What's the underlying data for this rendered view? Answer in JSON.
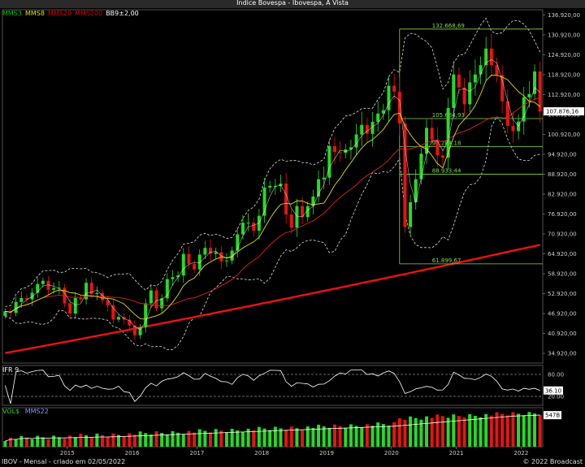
{
  "window": {
    "title": "Índice Bovespa - Ibovespa, À Vista"
  },
  "legend": [
    {
      "name": "MMS3",
      "color": "#00c000"
    },
    {
      "name": "MMS8",
      "color": "#e0e000"
    },
    {
      "name": "MMS20",
      "color": "#e00000"
    },
    {
      "name": "MMS200",
      "color": "#e00000"
    },
    {
      "name": "BB9±2,00",
      "color": "#ffffff"
    }
  ],
  "ifr_panel": {
    "label": "IFR 9",
    "ticks": [
      "80.00",
      "20.00"
    ],
    "last": "36.10"
  },
  "vol_panel": {
    "label1": "VOL$",
    "label2": "MMS22",
    "last": "547B"
  },
  "footer": {
    "left": "IBOV - Mensal - criado em 02/05/2022",
    "right": "© 2022 Broadcast"
  },
  "colors": {
    "up": "#22dd22",
    "down": "#ee1111",
    "ma200": "#ee1111",
    "fib": "#7fdc4a",
    "band": "#dddddd"
  },
  "chart_data": {
    "type": "candlestick",
    "x_ticks": [
      "2015",
      "2016",
      "2017",
      "2018",
      "2019",
      "2020",
      "2021",
      "2022"
    ],
    "y_ticks": [
      "136.920,00",
      "130.920,00",
      "124.920,00",
      "118.920,00",
      "112.920,00",
      "106.920,00",
      "100.920,00",
      "94.920,00",
      "88.920,00",
      "82.920,00",
      "76.920,00",
      "70.920,00",
      "64.920,00",
      "58.920,00",
      "52.920,00",
      "46.920,00",
      "40.920,00",
      "34.920,00"
    ],
    "ylim": [
      32000,
      138500
    ],
    "last_price": "107.876,16",
    "fib_levels": [
      {
        "value": 132668.69,
        "label": "132.668,69"
      },
      {
        "value": 105684.93,
        "label": "105.684,93"
      },
      {
        "value": 97284.18,
        "label": "97.284,18"
      },
      {
        "value": 88933.44,
        "label": "88.933,44"
      },
      {
        "value": 61899.67,
        "label": "61.899,67"
      }
    ],
    "start_year": 2014,
    "start_month": 1,
    "closes": [
      47600,
      47100,
      50400,
      51600,
      51200,
      53200,
      55800,
      56800,
      54100,
      54600,
      54700,
      50000,
      46900,
      51600,
      51200,
      56200,
      52800,
      53100,
      50900,
      49400,
      45100,
      45900,
      45100,
      43300,
      40400,
      42800,
      50000,
      53900,
      48500,
      51500,
      57300,
      57900,
      58400,
      64900,
      61900,
      60200,
      64700,
      66700,
      64900,
      65400,
      62700,
      62900,
      65900,
      70800,
      74300,
      74300,
      71900,
      76400,
      84900,
      85400,
      85400,
      86100,
      76800,
      72800,
      79300,
      76000,
      79300,
      82200,
      87400,
      87900,
      97400,
      95600,
      95400,
      96400,
      97000,
      100900,
      103800,
      101100,
      104700,
      107200,
      108200,
      115600,
      113800,
      104200,
      73000,
      80500,
      87400,
      95100,
      102900,
      99400,
      94600,
      93900,
      108900,
      119000,
      115100,
      110000,
      116600,
      119000,
      121800,
      126800,
      121800,
      118800,
      110900,
      103500,
      101900,
      104800,
      112100,
      113100,
      119900,
      107876
    ]
  },
  "ifr_data": {
    "ylim": [
      0,
      100
    ],
    "levels": [
      80,
      20
    ]
  },
  "vol_data": {
    "ylim": [
      0,
      100
    ]
  }
}
